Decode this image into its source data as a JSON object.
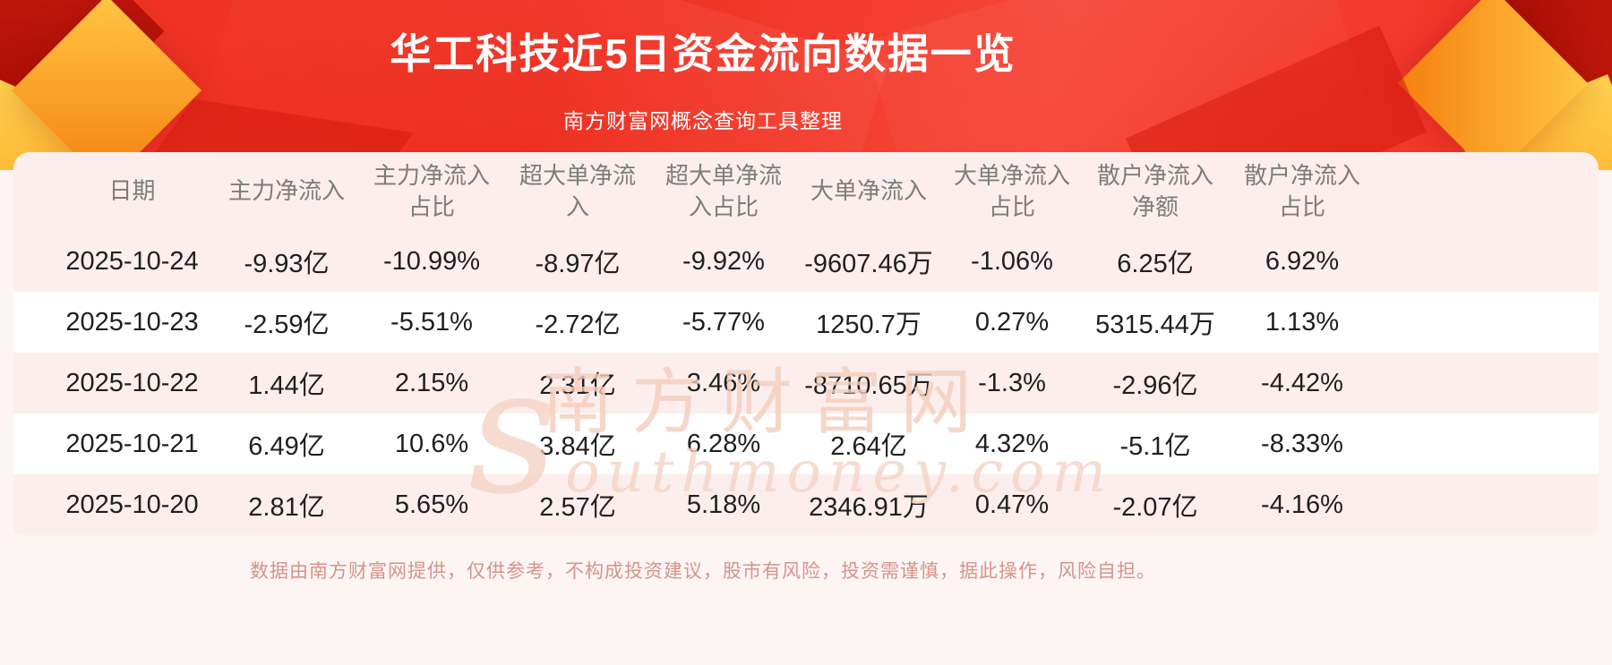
{
  "page": {
    "title": "华工科技近5日资金流向数据一览",
    "subtitle": "南方财富网概念查询工具整理",
    "footer_disclaimer": "数据由南方财富网提供，仅供参考，不构成投资建议，股市有风险，投资需谨慎，据此操作，风险自担。"
  },
  "watermark": {
    "brand": "南方财富网",
    "domain": "southmoney.com"
  },
  "colors": {
    "banner_red": "#ee3020",
    "accent_gold": "#ffb62e",
    "card_pink": "#fceeec",
    "row_white": "#ffffff",
    "header_text": "#7c7c7c",
    "data_text": "#1f1f1f",
    "footer_text": "#d4948c"
  },
  "chart_data": {
    "type": "table",
    "title": "华工科技近5日资金流向数据一览",
    "columns": [
      "日期",
      "主力净流入",
      "主力净流入占比",
      "超大单净流入",
      "超大单净流入占比",
      "大单净流入",
      "大单净流入占比",
      "散户净流入净额",
      "散户净流入占比"
    ],
    "rows": [
      [
        "2025-10-24",
        "-9.93亿",
        "-10.99%",
        "-8.97亿",
        "-9.92%",
        "-9607.46万",
        "-1.06%",
        "6.25亿",
        "6.92%"
      ],
      [
        "2025-10-23",
        "-2.59亿",
        "-5.51%",
        "-2.72亿",
        "-5.77%",
        "1250.7万",
        "0.27%",
        "5315.44万",
        "1.13%"
      ],
      [
        "2025-10-22",
        "1.44亿",
        "2.15%",
        "2.31亿",
        "3.46%",
        "-8710.65万",
        "-1.3%",
        "-2.96亿",
        "-4.42%"
      ],
      [
        "2025-10-21",
        "6.49亿",
        "10.6%",
        "3.84亿",
        "6.28%",
        "2.64亿",
        "4.32%",
        "-5.1亿",
        "-8.33%"
      ],
      [
        "2025-10-20",
        "2.81亿",
        "5.65%",
        "2.57亿",
        "5.18%",
        "2346.91万",
        "0.47%",
        "-2.07亿",
        "-4.16%"
      ]
    ]
  }
}
